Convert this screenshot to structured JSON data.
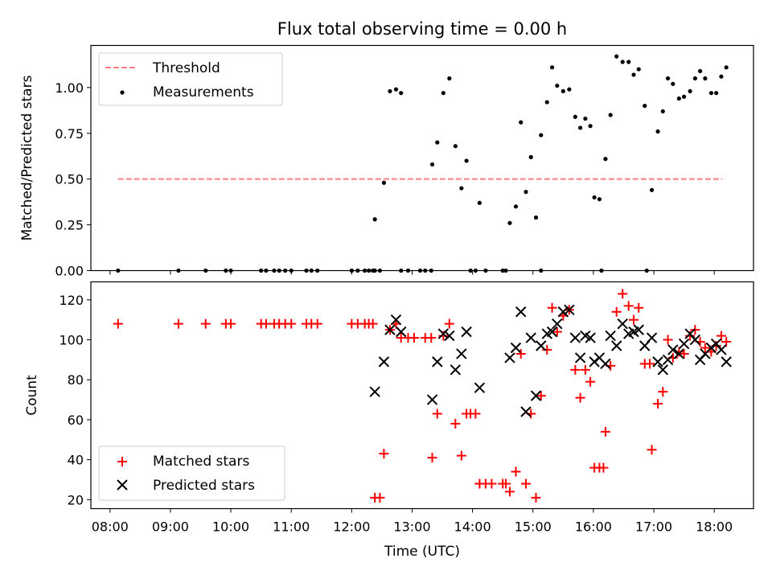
{
  "figure": {
    "title": "Flux total observing time = 0.00 h"
  },
  "chart_data": [
    {
      "type": "scatter",
      "panel": "top",
      "title": "Flux total observing time = 0.00 h",
      "xlabel": "",
      "ylabel": "Matched/Predicted stars",
      "xlim": [
        "07:41",
        "18:39"
      ],
      "ylim": [
        0,
        1.23
      ],
      "yticks": [
        0.0,
        0.25,
        0.5,
        0.75,
        1.0
      ],
      "ytick_labels": [
        "0.00",
        "0.25",
        "0.50",
        "0.75",
        "1.00"
      ],
      "grid": false,
      "legend": "top-left",
      "threshold": {
        "name": "Threshold",
        "value": 0.5,
        "x_range": [
          "08:08",
          "18:08"
        ],
        "color": "#ff7f7f",
        "style": "dashed"
      },
      "series": [
        {
          "name": "Measurements",
          "color": "#000000",
          "marker": "dot",
          "points": [
            [
              "08:08",
              0
            ],
            [
              "09:08",
              0
            ],
            [
              "09:35",
              0
            ],
            [
              "09:55",
              0
            ],
            [
              "10:00",
              0
            ],
            [
              "10:30",
              0
            ],
            [
              "10:35",
              0
            ],
            [
              "10:43",
              0
            ],
            [
              "10:48",
              0
            ],
            [
              "10:54",
              0
            ],
            [
              "11:00",
              0
            ],
            [
              "11:15",
              0
            ],
            [
              "11:20",
              0
            ],
            [
              "11:26",
              0
            ],
            [
              "12:00",
              0
            ],
            [
              "12:06",
              0
            ],
            [
              "12:13",
              0
            ],
            [
              "12:17",
              0
            ],
            [
              "12:21",
              0
            ],
            [
              "12:23",
              0
            ],
            [
              "12:28",
              0
            ],
            [
              "12:49",
              0
            ],
            [
              "12:56",
              0
            ],
            [
              "13:08",
              0
            ],
            [
              "13:13",
              0
            ],
            [
              "13:19",
              0
            ],
            [
              "13:58",
              0
            ],
            [
              "14:03",
              0
            ],
            [
              "14:13",
              0
            ],
            [
              "14:30",
              0
            ],
            [
              "14:33",
              0
            ],
            [
              "15:08",
              0
            ],
            [
              "16:08",
              0
            ],
            [
              "16:53",
              0
            ],
            [
              "12:23",
              0.28
            ],
            [
              "12:32",
              0.48
            ],
            [
              "12:38",
              0.98
            ],
            [
              "12:44",
              0.99
            ],
            [
              "12:49",
              0.97
            ],
            [
              "13:20",
              0.58
            ],
            [
              "13:25",
              0.7
            ],
            [
              "13:31",
              0.97
            ],
            [
              "13:37",
              1.05
            ],
            [
              "13:43",
              0.68
            ],
            [
              "13:49",
              0.45
            ],
            [
              "13:54",
              0.6
            ],
            [
              "14:07",
              0.37
            ],
            [
              "14:37",
              0.26
            ],
            [
              "14:43",
              0.35
            ],
            [
              "14:48",
              0.81
            ],
            [
              "14:53",
              0.43
            ],
            [
              "14:58",
              0.62
            ],
            [
              "15:03",
              0.29
            ],
            [
              "15:08",
              0.74
            ],
            [
              "15:14",
              0.92
            ],
            [
              "15:19",
              1.11
            ],
            [
              "15:24",
              1.01
            ],
            [
              "15:30",
              0.98
            ],
            [
              "15:36",
              0.99
            ],
            [
              "15:42",
              0.84
            ],
            [
              "15:47",
              0.78
            ],
            [
              "15:52",
              0.83
            ],
            [
              "15:57",
              0.79
            ],
            [
              "16:01",
              0.4
            ],
            [
              "16:06",
              0.39
            ],
            [
              "16:12",
              0.61
            ],
            [
              "16:17",
              0.85
            ],
            [
              "16:23",
              1.17
            ],
            [
              "16:29",
              1.14
            ],
            [
              "16:35",
              1.14
            ],
            [
              "16:40",
              1.07
            ],
            [
              "16:45",
              1.1
            ],
            [
              "16:51",
              0.9
            ],
            [
              "16:58",
              0.44
            ],
            [
              "17:04",
              0.76
            ],
            [
              "17:09",
              0.87
            ],
            [
              "17:14",
              1.05
            ],
            [
              "17:19",
              1.02
            ],
            [
              "17:25",
              0.94
            ],
            [
              "17:30",
              0.95
            ],
            [
              "17:36",
              0.98
            ],
            [
              "17:41",
              1.05
            ],
            [
              "17:46",
              1.09
            ],
            [
              "17:51",
              1.05
            ],
            [
              "17:57",
              0.97
            ],
            [
              "18:02",
              0.97
            ],
            [
              "18:07",
              1.06
            ],
            [
              "18:12",
              1.11
            ]
          ]
        }
      ]
    },
    {
      "type": "scatter",
      "panel": "bottom",
      "xlabel": "Time (UTC)",
      "ylabel": "Count",
      "xlim": [
        "07:41",
        "18:39"
      ],
      "ylim": [
        15.5,
        129
      ],
      "xticks": [
        "08:00",
        "09:00",
        "10:00",
        "11:00",
        "12:00",
        "13:00",
        "14:00",
        "15:00",
        "16:00",
        "17:00",
        "18:00"
      ],
      "yticks": [
        20,
        40,
        60,
        80,
        100,
        120
      ],
      "ytick_labels": [
        "20",
        "40",
        "60",
        "80",
        "100",
        "120"
      ],
      "grid": false,
      "legend": "bottom-left",
      "series": [
        {
          "name": "Matched stars",
          "color": "#ff0000",
          "marker": "plus",
          "points": [
            [
              "08:08",
              108
            ],
            [
              "09:08",
              108
            ],
            [
              "09:35",
              108
            ],
            [
              "09:55",
              108
            ],
            [
              "10:00",
              108
            ],
            [
              "10:30",
              108
            ],
            [
              "10:35",
              108
            ],
            [
              "10:43",
              108
            ],
            [
              "10:48",
              108
            ],
            [
              "10:54",
              108
            ],
            [
              "11:00",
              108
            ],
            [
              "11:15",
              108
            ],
            [
              "11:20",
              108
            ],
            [
              "11:26",
              108
            ],
            [
              "12:00",
              108
            ],
            [
              "12:06",
              108
            ],
            [
              "12:13",
              108
            ],
            [
              "12:17",
              108
            ],
            [
              "12:21",
              108
            ],
            [
              "12:23",
              21
            ],
            [
              "12:28",
              21
            ],
            [
              "12:32",
              43
            ],
            [
              "12:38",
              105
            ],
            [
              "12:44",
              108
            ],
            [
              "12:49",
              101
            ],
            [
              "12:56",
              101
            ],
            [
              "13:02",
              101
            ],
            [
              "13:13",
              101
            ],
            [
              "13:19",
              101
            ],
            [
              "13:20",
              41
            ],
            [
              "13:25",
              63
            ],
            [
              "13:31",
              102
            ],
            [
              "13:37",
              108
            ],
            [
              "13:43",
              58
            ],
            [
              "13:49",
              42
            ],
            [
              "13:54",
              63
            ],
            [
              "13:58",
              63
            ],
            [
              "14:03",
              63
            ],
            [
              "14:07",
              28
            ],
            [
              "14:13",
              28
            ],
            [
              "14:19",
              28
            ],
            [
              "14:30",
              28
            ],
            [
              "14:33",
              28
            ],
            [
              "14:37",
              24
            ],
            [
              "14:43",
              34
            ],
            [
              "14:48",
              93
            ],
            [
              "14:53",
              28
            ],
            [
              "14:58",
              63
            ],
            [
              "15:03",
              21
            ],
            [
              "15:08",
              72
            ],
            [
              "15:14",
              95
            ],
            [
              "15:19",
              116
            ],
            [
              "15:24",
              104
            ],
            [
              "15:30",
              112
            ],
            [
              "15:36",
              115
            ],
            [
              "15:42",
              85
            ],
            [
              "15:47",
              71
            ],
            [
              "15:52",
              85
            ],
            [
              "15:57",
              79
            ],
            [
              "16:01",
              36
            ],
            [
              "16:06",
              36
            ],
            [
              "16:10",
              36
            ],
            [
              "16:12",
              54
            ],
            [
              "16:17",
              87
            ],
            [
              "16:23",
              114
            ],
            [
              "16:29",
              123
            ],
            [
              "16:35",
              117
            ],
            [
              "16:40",
              110
            ],
            [
              "16:45",
              116
            ],
            [
              "16:51",
              88
            ],
            [
              "16:56",
              88
            ],
            [
              "16:58",
              45
            ],
            [
              "17:04",
              68
            ],
            [
              "17:09",
              74
            ],
            [
              "17:14",
              100
            ],
            [
              "17:19",
              91
            ],
            [
              "17:25",
              94
            ],
            [
              "17:30",
              93
            ],
            [
              "17:36",
              102
            ],
            [
              "17:41",
              105
            ],
            [
              "17:46",
              99
            ],
            [
              "17:51",
              96
            ],
            [
              "17:57",
              94
            ],
            [
              "18:02",
              97
            ],
            [
              "18:07",
              102
            ],
            [
              "18:12",
              99
            ]
          ]
        },
        {
          "name": "Predicted stars",
          "color": "#000000",
          "marker": "x",
          "points": [
            [
              "12:23",
              74
            ],
            [
              "12:32",
              89
            ],
            [
              "12:38",
              105
            ],
            [
              "12:44",
              110
            ],
            [
              "12:49",
              104
            ],
            [
              "13:20",
              70
            ],
            [
              "13:25",
              89
            ],
            [
              "13:31",
              103
            ],
            [
              "13:37",
              102
            ],
            [
              "13:43",
              85
            ],
            [
              "13:49",
              93
            ],
            [
              "13:54",
              104
            ],
            [
              "14:07",
              76
            ],
            [
              "14:37",
              91
            ],
            [
              "14:43",
              96
            ],
            [
              "14:48",
              114
            ],
            [
              "14:53",
              64
            ],
            [
              "14:58",
              101
            ],
            [
              "15:03",
              72
            ],
            [
              "15:08",
              97
            ],
            [
              "15:14",
              103
            ],
            [
              "15:19",
              104
            ],
            [
              "15:24",
              108
            ],
            [
              "15:30",
              114
            ],
            [
              "15:36",
              115
            ],
            [
              "15:42",
              101
            ],
            [
              "15:47",
              91
            ],
            [
              "15:52",
              102
            ],
            [
              "15:57",
              101
            ],
            [
              "16:01",
              89
            ],
            [
              "16:06",
              91
            ],
            [
              "16:12",
              88
            ],
            [
              "16:17",
              102
            ],
            [
              "16:23",
              97
            ],
            [
              "16:29",
              108
            ],
            [
              "16:35",
              103
            ],
            [
              "16:40",
              104
            ],
            [
              "16:45",
              105
            ],
            [
              "16:51",
              97
            ],
            [
              "16:58",
              101
            ],
            [
              "17:04",
              89
            ],
            [
              "17:09",
              85
            ],
            [
              "17:14",
              90
            ],
            [
              "17:19",
              95
            ],
            [
              "17:25",
              93
            ],
            [
              "17:30",
              98
            ],
            [
              "17:36",
              103
            ],
            [
              "17:41",
              100
            ],
            [
              "17:46",
              90
            ],
            [
              "17:51",
              93
            ],
            [
              "17:57",
              96
            ],
            [
              "18:02",
              98
            ],
            [
              "18:07",
              95
            ],
            [
              "18:12",
              89
            ]
          ]
        }
      ]
    }
  ]
}
